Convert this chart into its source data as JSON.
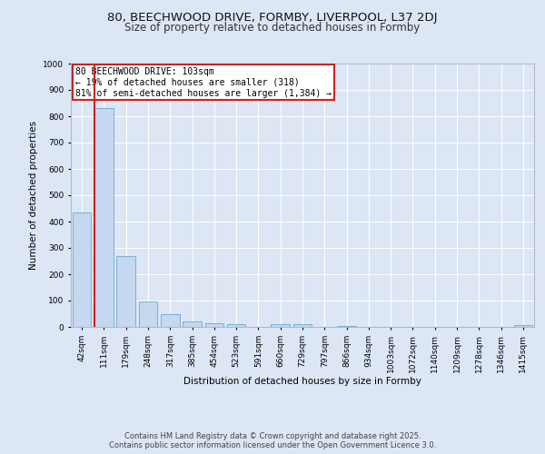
{
  "title1": "80, BEECHWOOD DRIVE, FORMBY, LIVERPOOL, L37 2DJ",
  "title2": "Size of property relative to detached houses in Formby",
  "xlabel": "Distribution of detached houses by size in Formby",
  "ylabel": "Number of detached properties",
  "categories": [
    "42sqm",
    "111sqm",
    "179sqm",
    "248sqm",
    "317sqm",
    "385sqm",
    "454sqm",
    "523sqm",
    "591sqm",
    "660sqm",
    "729sqm",
    "797sqm",
    "866sqm",
    "934sqm",
    "1003sqm",
    "1072sqm",
    "1140sqm",
    "1209sqm",
    "1278sqm",
    "1346sqm",
    "1415sqm"
  ],
  "values": [
    435,
    830,
    270,
    95,
    50,
    22,
    15,
    10,
    0,
    10,
    10,
    0,
    5,
    0,
    0,
    0,
    0,
    0,
    0,
    0,
    8
  ],
  "bar_color": "#c5d8ef",
  "bar_edge_color": "#7aafd4",
  "vline_color": "#cc2222",
  "vline_x_index": 0.57,
  "annotation_text": "80 BEECHWOOD DRIVE: 103sqm\n← 19% of detached houses are smaller (318)\n81% of semi-detached houses are larger (1,384) →",
  "annotation_box_facecolor": "#ffffff",
  "annotation_box_edgecolor": "#cc2222",
  "ylim": [
    0,
    1000
  ],
  "yticks": [
    0,
    100,
    200,
    300,
    400,
    500,
    600,
    700,
    800,
    900,
    1000
  ],
  "footer": "Contains HM Land Registry data © Crown copyright and database right 2025.\nContains public sector information licensed under the Open Government Licence 3.0.",
  "bg_color": "#dce6f5",
  "plot_bg_color": "#dce6f5",
  "grid_color": "#ffffff",
  "title1_fontsize": 9.5,
  "title2_fontsize": 8.5,
  "tick_fontsize": 6.5,
  "label_fontsize": 7.5,
  "annotation_fontsize": 7,
  "footer_fontsize": 6
}
